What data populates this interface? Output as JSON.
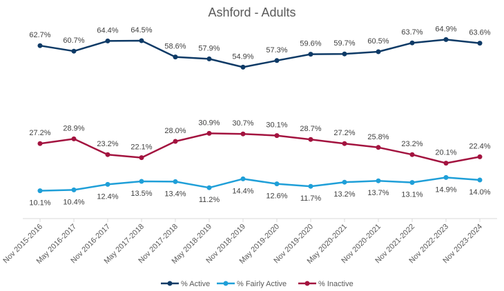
{
  "chart_data": {
    "type": "line",
    "title": "Ashford - Adults",
    "xlabel": "",
    "ylabel": "",
    "ylim": [
      0,
      70
    ],
    "grid": false,
    "legend_position": "bottom",
    "categories": [
      "Nov 2015-2016",
      "May 2016-2017",
      "Nov 2016-2017",
      "May 2017-2018",
      "Nov 2017-2018",
      "May 2018-2019",
      "Nov 2018-2019",
      "May 2019-2020",
      "Nov 2019-2020",
      "May 2020-2021",
      "Nov 2020-2021",
      "Nov 2021-2022",
      "Nov 2022-2023",
      "Nov 2023-2024"
    ],
    "series": [
      {
        "name": "% Active",
        "color": "#0e3a66",
        "label_position": "above",
        "values": [
          62.7,
          60.7,
          64.4,
          64.5,
          58.6,
          57.9,
          54.9,
          57.3,
          59.6,
          59.7,
          60.5,
          63.7,
          64.9,
          63.6
        ],
        "labels": [
          "62.7%",
          "60.7%",
          "64.4%",
          "64.5%",
          "58.6%",
          "57.9%",
          "54.9%",
          "57.3%",
          "59.6%",
          "59.7%",
          "60.5%",
          "63.7%",
          "64.9%",
          "63.6%"
        ]
      },
      {
        "name": "% Fairly Active",
        "color": "#1f9fd8",
        "label_position": "below",
        "values": [
          10.1,
          10.4,
          12.4,
          13.5,
          13.4,
          11.2,
          14.4,
          12.6,
          11.7,
          13.2,
          13.7,
          13.1,
          14.9,
          14.0
        ],
        "labels": [
          "10.1%",
          "10.4%",
          "12.4%",
          "13.5%",
          "13.4%",
          "11.2%",
          "14.4%",
          "12.6%",
          "11.7%",
          "13.2%",
          "13.7%",
          "13.1%",
          "14.9%",
          "14.0%"
        ]
      },
      {
        "name": "% Inactive",
        "color": "#a3133f",
        "label_position": "above",
        "values": [
          27.2,
          28.9,
          23.2,
          22.1,
          28.0,
          30.9,
          30.7,
          30.1,
          28.7,
          27.2,
          25.8,
          23.2,
          20.1,
          22.4
        ],
        "labels": [
          "27.2%",
          "28.9%",
          "23.2%",
          "22.1%",
          "28.0%",
          "30.9%",
          "30.7%",
          "30.1%",
          "28.7%",
          "27.2%",
          "25.8%",
          "23.2%",
          "20.1%",
          "22.4%"
        ]
      }
    ]
  }
}
